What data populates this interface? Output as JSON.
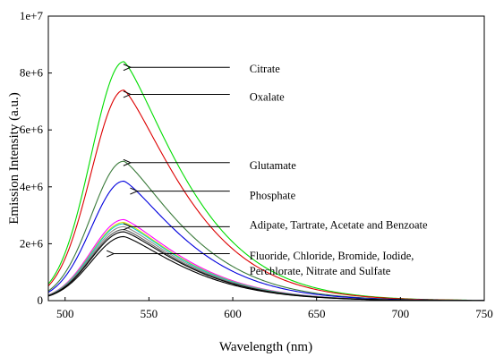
{
  "chart_data": {
    "type": "line",
    "title": "",
    "xlabel": "Wavelength (nm)",
    "ylabel": "Emission Intensity (a.u.)",
    "xlim": [
      490,
      750
    ],
    "ylim": [
      0,
      10000000
    ],
    "xticks": [
      500,
      550,
      600,
      650,
      700,
      750
    ],
    "xtick_labels": [
      "500",
      "550",
      "600",
      "650",
      "700",
      "750"
    ],
    "yticks": [
      0,
      2000000,
      4000000,
      6000000,
      8000000,
      10000000
    ],
    "ytick_labels": [
      "0",
      "2e+6",
      "4e+6",
      "6e+6",
      "8e+6",
      "1e+7"
    ],
    "grid": false,
    "legend": "none",
    "peak_wavelength": 535,
    "series": [
      {
        "color": "#00dd00",
        "peak": 8400000
      },
      {
        "color": "#dd0000",
        "peak": 7400000
      },
      {
        "color": "#3a7a3a",
        "peak": 4900000
      },
      {
        "color": "#0000dd",
        "peak": 4200000
      },
      {
        "color": "#ff00ff",
        "peak": 2850000
      },
      {
        "color": "#dddd00",
        "peak": 2750000
      },
      {
        "color": "#00cccc",
        "peak": 2700000
      },
      {
        "color": "#8a8a8a",
        "peak": 2600000
      },
      {
        "color": "#5a5a5a",
        "peak": 2500000
      },
      {
        "color": "#000000",
        "peak": 2420000
      },
      {
        "color": "#000000",
        "peak": 2250000
      }
    ],
    "annotations": [
      {
        "lines": [
          "Citrate"
        ],
        "arrow_x": 538,
        "arrow_y": 8200000,
        "text_x": 610,
        "text_y": 8150000
      },
      {
        "lines": [
          "Oxalate"
        ],
        "arrow_x": 538,
        "arrow_y": 7250000,
        "text_x": 610,
        "text_y": 7150000
      },
      {
        "lines": [
          "Glutamate"
        ],
        "arrow_x": 538,
        "arrow_y": 4850000,
        "text_x": 610,
        "text_y": 4750000
      },
      {
        "lines": [
          "Phosphate"
        ],
        "arrow_x": 542,
        "arrow_y": 3850000,
        "text_x": 610,
        "text_y": 3700000
      },
      {
        "lines": [
          "Adipate, Tartrate, Acetate and Benzoate"
        ],
        "arrow_x": 538,
        "arrow_y": 2600000,
        "text_x": 610,
        "text_y": 2650000
      },
      {
        "lines": [
          "Fluoride, Chloride, Bromide, Iodide,",
          "Perchlorate,  Nitrate and Sulfate"
        ],
        "arrow_x": 528,
        "arrow_y": 1650000,
        "text_x": 610,
        "text_y": 1580000
      }
    ]
  }
}
